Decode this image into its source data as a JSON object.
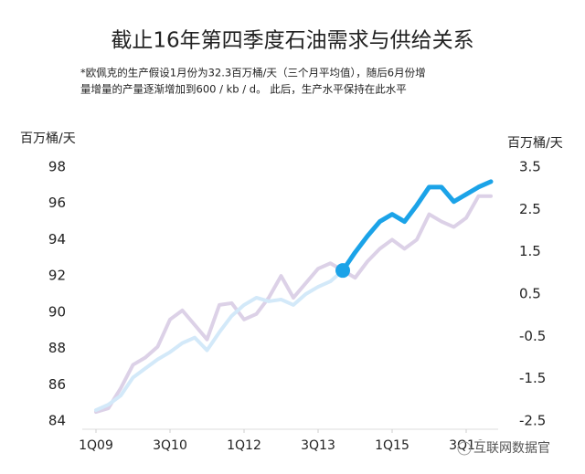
{
  "chart_data": {
    "type": "line",
    "title": "截止16年第四季度石油需求与供给关系",
    "subtitle": [
      "*欧佩克的生产假设1月份为32.3百万桶/天（三个月平均值），随后6月份增",
      "量增量的产量逐渐增加到600 / kb / d。 此后，生产水平保持在此水平"
    ],
    "y_label": "百万桶/天",
    "y2_label": "百万桶/天",
    "watermark": "互联网数据官",
    "categories": [
      "1Q09",
      null,
      null,
      null,
      null,
      null,
      "3Q10",
      null,
      null,
      null,
      null,
      null,
      "1Q12",
      null,
      null,
      null,
      null,
      null,
      "3Q13",
      null,
      null,
      null,
      null,
      null,
      "1Q15",
      null,
      null,
      null,
      null,
      null,
      "3Q16",
      null,
      null
    ],
    "ylim": [
      84,
      98
    ],
    "yticks": [
      84,
      86,
      88,
      90,
      92,
      94,
      96,
      98
    ],
    "y2lim": [
      -2.5,
      3.5
    ],
    "y2ticks": [
      -2.5,
      -1.5,
      -0.5,
      0.5,
      1.5,
      2.5,
      3.5
    ],
    "series": [
      {
        "color": "#dcd1e7",
        "values": [
          84.5,
          84.7,
          85.8,
          87.1,
          87.5,
          88.1,
          89.6,
          90.1,
          89.3,
          88.5,
          90.4,
          90.5,
          89.6,
          89.9,
          90.8,
          92.0,
          90.8,
          91.6,
          92.4,
          92.7,
          92.3,
          91.9,
          92.8,
          93.5,
          94.0,
          93.5,
          94.0,
          95.4,
          95.0,
          94.7,
          95.2,
          96.4,
          96.4
        ]
      },
      {
        "color": "#d3e9f9",
        "values": [
          84.6,
          84.9,
          85.4,
          86.4,
          86.9,
          87.4,
          87.8,
          88.3,
          88.6,
          87.9,
          88.9,
          89.8,
          90.4,
          90.8,
          90.6,
          90.7,
          90.4,
          91.0,
          91.4,
          91.7,
          92.3,
          null,
          null,
          null,
          null,
          null,
          null,
          null,
          null,
          null,
          null,
          null,
          null
        ]
      },
      {
        "color": "#1ba3e8",
        "start_marker": true,
        "values": [
          null,
          null,
          null,
          null,
          null,
          null,
          null,
          null,
          null,
          null,
          null,
          null,
          null,
          null,
          null,
          null,
          null,
          null,
          null,
          null,
          92.3,
          93.3,
          94.2,
          95.0,
          95.4,
          95.0,
          95.9,
          96.9,
          96.9,
          96.1,
          96.5,
          96.9,
          97.2
        ]
      }
    ]
  }
}
